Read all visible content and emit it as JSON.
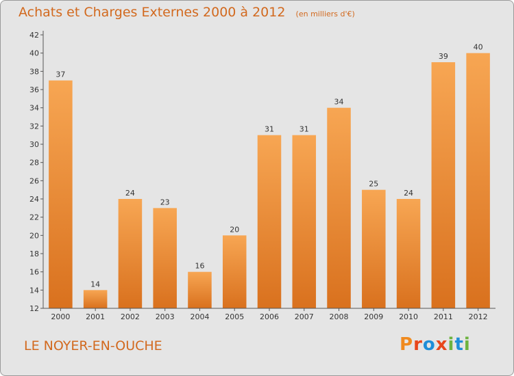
{
  "chart_data": {
    "type": "bar",
    "title": "Achats et Charges Externes 2000 à 2012",
    "unit": "(en milliers d'€)",
    "categories": [
      "2000",
      "2001",
      "2002",
      "2003",
      "2004",
      "2005",
      "2006",
      "2007",
      "2008",
      "2009",
      "2010",
      "2011",
      "2012"
    ],
    "values": [
      37,
      14,
      24,
      23,
      16,
      20,
      31,
      31,
      34,
      25,
      24,
      39,
      40
    ],
    "ylim": [
      12,
      42
    ],
    "yticks": [
      12,
      14,
      16,
      18,
      20,
      22,
      24,
      26,
      28,
      30,
      32,
      34,
      36,
      38,
      40,
      42
    ],
    "grid": false,
    "legend": "none",
    "bar_color_top": "#f7a653",
    "bar_color_bottom": "#d9711e"
  },
  "location": "LE NOYER-EN-OUCHE",
  "brand": {
    "name": "Proxiti",
    "letter_colors": [
      "#f08a1e",
      "#e8471b",
      "#1f8ed8",
      "#e8471b",
      "#6db33f",
      "#1f8ed8",
      "#6db33f"
    ]
  },
  "colors": {
    "accent": "#d2691e",
    "background": "#e5e5e5"
  }
}
